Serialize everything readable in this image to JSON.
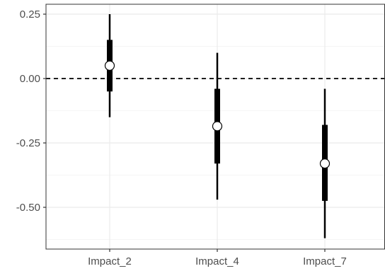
{
  "chart_data": {
    "type": "forest",
    "categories": [
      "Impact_2",
      "Impact_4",
      "Impact_7"
    ],
    "points": [
      {
        "category": "Impact_2",
        "estimate": 0.05,
        "inner_low": -0.05,
        "inner_high": 0.15,
        "outer_low": -0.15,
        "outer_high": 0.25
      },
      {
        "category": "Impact_4",
        "estimate": -0.185,
        "inner_low": -0.33,
        "inner_high": -0.04,
        "outer_low": -0.47,
        "outer_high": 0.1
      },
      {
        "category": "Impact_7",
        "estimate": -0.33,
        "inner_low": -0.475,
        "inner_high": -0.18,
        "outer_low": -0.62,
        "outer_high": -0.04
      }
    ],
    "y_ticks": [
      0.25,
      0.0,
      -0.25,
      -0.5
    ],
    "y_tick_labels": [
      "0.25",
      "0.00",
      "-0.25",
      "-0.50"
    ],
    "ylim": [
      -0.665,
      0.27
    ],
    "reference_line": {
      "y": 0,
      "style": "dashed"
    },
    "title": "",
    "xlabel": "",
    "ylabel": "",
    "grid": true,
    "theme": "bw",
    "colors": {
      "panel_border": "#333333",
      "grid_major": "#ebebeb",
      "grid_minor": "#f5f5f5",
      "text": "#4d4d4d",
      "mark": "#000000",
      "point_fill": "#ffffff"
    }
  }
}
